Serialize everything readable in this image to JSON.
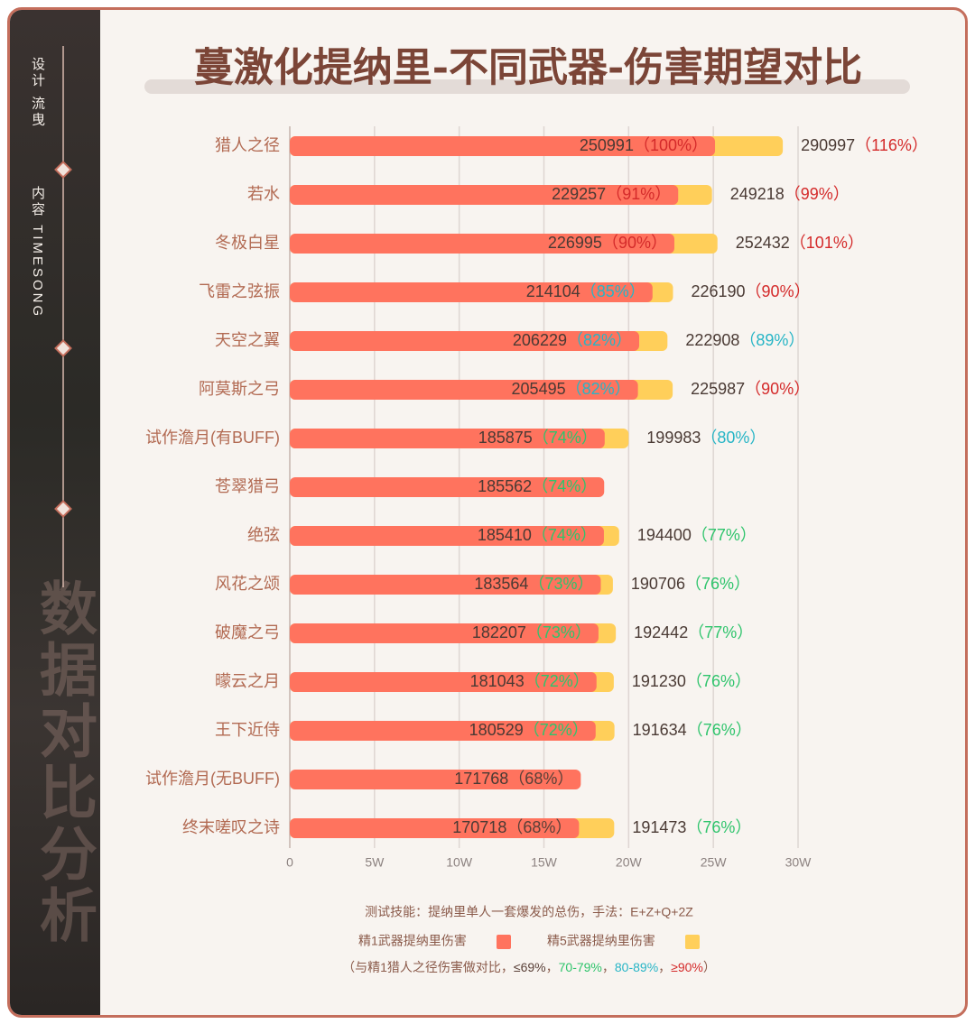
{
  "sidebar": {
    "designer": "设计 流曳",
    "content": "内容 TIMESONG",
    "watermark": "数据对比分析"
  },
  "chart_data": {
    "type": "bar",
    "orientation": "horizontal",
    "title": "蔓激化提纳里-不同武器-伤害期望对比",
    "categories": [
      "猎人之径",
      "若水",
      "冬极白星",
      "飞雷之弦振",
      "天空之翼",
      "阿莫斯之弓",
      "试作澹月(有BUFF)",
      "苍翠猎弓",
      "绝弦",
      "风花之颂",
      "破魔之弓",
      "曚云之月",
      "王下近侍",
      "试作澹月(无BUFF)",
      "终末嗟叹之诗"
    ],
    "series": [
      {
        "name": "精1武器提纳里伤害",
        "color": "#ff735e",
        "values": [
          250991,
          229257,
          226995,
          214104,
          206229,
          205495,
          185875,
          185562,
          185410,
          183564,
          182207,
          181043,
          180529,
          171768,
          170718
        ],
        "shares": [
          100,
          91,
          90,
          85,
          82,
          82,
          74,
          74,
          74,
          73,
          73,
          72,
          72,
          68,
          68
        ],
        "share_labels": [
          "（100%）",
          "（91%）",
          "（90%）",
          "（85%）",
          "（82%）",
          "（82%）",
          "（74%）",
          "（74%）",
          "（74%）",
          "（73%）",
          "（73%）",
          "（72%）",
          "（72%）",
          "（68%）",
          "（68%）"
        ]
      },
      {
        "name": "精5武器提纳里伤害",
        "color": "#ffcf5a",
        "values": [
          290997,
          249218,
          252432,
          226190,
          222908,
          225987,
          199983,
          null,
          194400,
          190706,
          192442,
          191230,
          191634,
          null,
          191473
        ],
        "shares": [
          116,
          99,
          101,
          90,
          89,
          90,
          80,
          null,
          77,
          76,
          77,
          76,
          76,
          null,
          76
        ],
        "share_labels": [
          "（116%）",
          "（99%）",
          "（101%）",
          "（90%）",
          "（89%）",
          "（90%）",
          "（80%）",
          null,
          "（77%）",
          "（76%）",
          "（77%）",
          "（76%）",
          "（76%）",
          null,
          "（76%）"
        ]
      }
    ],
    "xlim": [
      0,
      300000
    ],
    "xticks": [
      0,
      {
        "value": 50000,
        "label": "5W"
      },
      {
        "value": 100000,
        "label": "10W"
      },
      {
        "value": 150000,
        "label": "15W"
      },
      {
        "value": 200000,
        "label": "20W"
      },
      {
        "value": 250000,
        "label": "25W"
      },
      {
        "value": 300000,
        "label": "30W"
      }
    ],
    "grid": true,
    "footnote": "测试技能：提纳里单人一套爆发的总伤，手法：E+Z+Q+2Z",
    "note": {
      "prefix": "（与精1猎人之径伤害做对比，",
      "separator": "，",
      "suffix": "）"
    },
    "share_bands": [
      {
        "label": "≤69%",
        "color": "#5a4038"
      },
      {
        "label": "70-79%",
        "min": 70,
        "color": "#2fc46c"
      },
      {
        "label": "80-89%",
        "min": 80,
        "color": "#27b5c6"
      },
      {
        "label": "≥90%",
        "min": 90,
        "color": "#d42a2a"
      }
    ]
  }
}
